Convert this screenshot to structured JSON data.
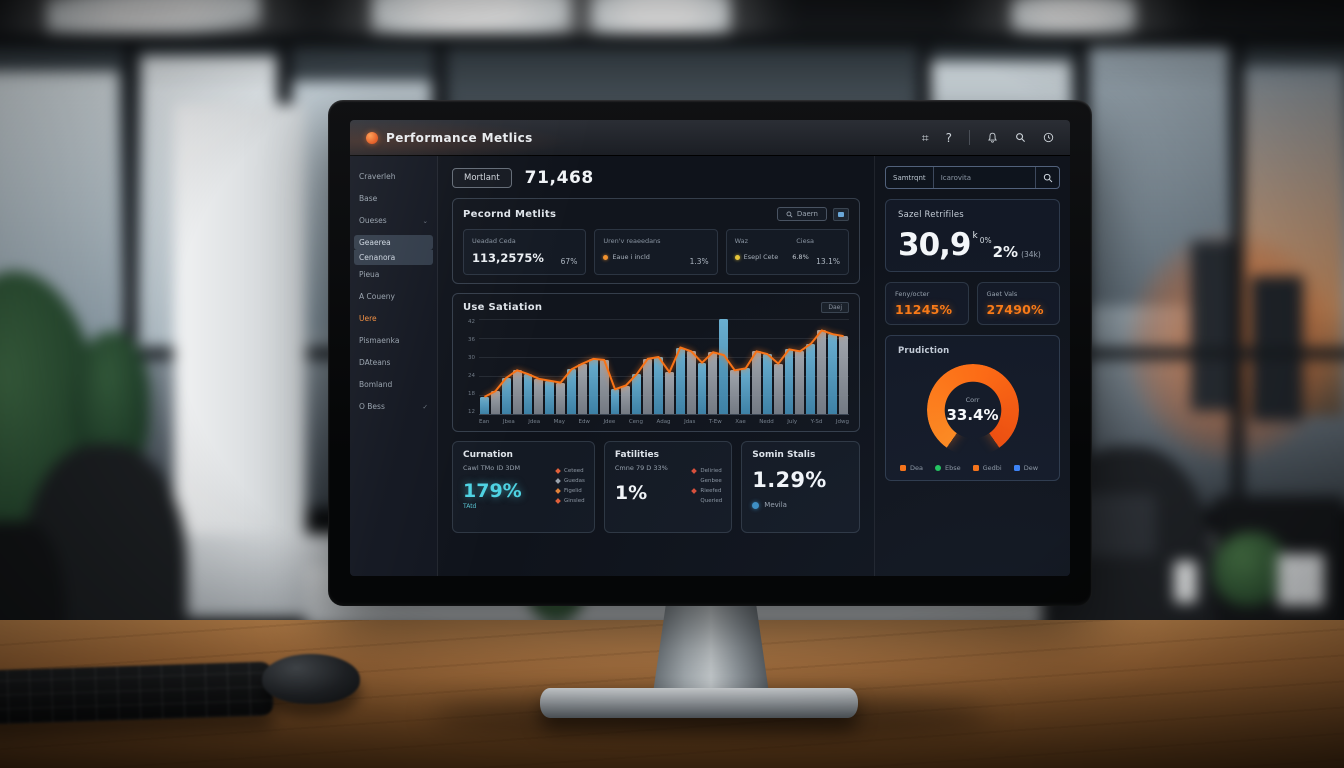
{
  "chart_data": {
    "type": "bar",
    "title": "Use Satiation",
    "action_label": "Daej",
    "x_labels": [
      "Ean",
      "Jbea",
      "Jdea",
      "May",
      "Edw",
      "Jdee",
      "Ceng",
      "Adag",
      "Jdas",
      "T-Ew",
      "Xae",
      "Nedd",
      "July",
      "Y-Sd",
      "Jdwg"
    ],
    "y_labels": [
      "42",
      "36",
      "30",
      "24",
      "18",
      "12"
    ],
    "bar_values": [
      18,
      24,
      38,
      46,
      42,
      37,
      35,
      33,
      47,
      53,
      58,
      57,
      26,
      30,
      42,
      58,
      60,
      44,
      70,
      66,
      54,
      65,
      100,
      46,
      48,
      66,
      63,
      53,
      68,
      66,
      74,
      88,
      84,
      82
    ],
    "line_values": [
      18,
      24,
      38,
      46,
      42,
      37,
      35,
      33,
      47,
      53,
      58,
      57,
      26,
      30,
      42,
      58,
      60,
      44,
      70,
      66,
      54,
      65,
      62,
      46,
      48,
      66,
      63,
      53,
      68,
      66,
      74,
      88,
      84,
      82
    ],
    "ylim": [
      0,
      100
    ],
    "grid": true,
    "bar_colors": {
      "primary": "#6fb7da",
      "secondary": "#a8adb4"
    },
    "line_color": "#f97316"
  },
  "screen": {
    "header": {
      "title": "Performance Metlics",
      "icons": [
        "grid-icon",
        "help-icon",
        "bell-icon",
        "search-icon",
        "clock-icon"
      ]
    },
    "sidebar": {
      "items": [
        {
          "label": "Craverleh"
        },
        {
          "label": "Base"
        },
        {
          "label": "Oueses",
          "suffix": "⌄"
        },
        {
          "label": "Geaerea",
          "state": "active"
        },
        {
          "label": "Cenanora",
          "state": "active"
        },
        {
          "label": "Pieua"
        },
        {
          "label": "A Coueny"
        },
        {
          "label": "Uere",
          "state": "accent"
        },
        {
          "label": "Pismaenka"
        },
        {
          "label": "DAteans"
        },
        {
          "label": "Bomland"
        },
        {
          "label": "O Bess",
          "suffix": "✓"
        }
      ]
    },
    "kpi": {
      "button_label": "Mortlant",
      "value": "71,468"
    },
    "percent_section": {
      "title": "Pecornd Metlits",
      "search_label": "Daern",
      "cards": [
        {
          "label": "Ueadad Ceda",
          "value": "113,2575%",
          "aside": "67%"
        },
        {
          "label": "Uren'v reaeedans",
          "item": "Eaue i incld",
          "aside": "1.3%"
        },
        {
          "label": "Waz",
          "label2": "Ciesa",
          "item": "Esepl Cete",
          "value2": "6.8%",
          "aside": "13.1%"
        }
      ]
    },
    "bottom_cards": {
      "curation": {
        "title": "Curnation",
        "subtitle": "Cawl TMo ID 3DM",
        "value": "179%",
        "value_caption": "TAtd",
        "legend": [
          {
            "label": "Ceteed",
            "color": "#e0603a"
          },
          {
            "label": "Guedas",
            "color": "#9aa3ad"
          },
          {
            "label": "Figelid",
            "color": "#e0823a"
          },
          {
            "label": "Ginsled",
            "color": "#e0603a"
          }
        ]
      },
      "fatilities": {
        "title": "Fatilities",
        "subtitle": "Cmne 79 D 33%",
        "value": "1%",
        "legend": [
          {
            "label": "Deliried",
            "color": "#d94f3a"
          },
          {
            "label": "Genbee",
            "color": "transparent"
          },
          {
            "label": "Rieefed",
            "color": "#d94f3a"
          },
          {
            "label": "Queried",
            "color": "transparent"
          }
        ]
      },
      "status": {
        "title": "Somin Stalis",
        "value": "1.29%",
        "legend_label": "Mevila"
      }
    },
    "right_panel": {
      "search": {
        "segment": "Samtrqnt",
        "placeholder": "Icarovita"
      },
      "seal": {
        "title": "Sazel Retrifiles",
        "value_main": "30,9",
        "sup_a": "k",
        "sup_b": "0%",
        "value_mid": "2%",
        "note": "(34k)"
      },
      "stat_cards": [
        {
          "label": "Feny/octer",
          "value": "11245%"
        },
        {
          "label": "Gaet Vals",
          "value": "27490%"
        }
      ],
      "prediction": {
        "title": "Prudiction",
        "center_label": "Corr",
        "value": "33.4%",
        "legend": [
          {
            "label": "Dea",
            "color": "#f97316"
          },
          {
            "label": "Ebse",
            "color": "#22c55e",
            "shape": "dot"
          },
          {
            "label": "Gedbi",
            "color": "#f97316"
          },
          {
            "label": "Dew",
            "color": "#3b82f6"
          }
        ]
      }
    }
  },
  "colors": {
    "accent_orange": "#f97316",
    "bar_blue": "#6fb7da",
    "bar_gray": "#a8adb4",
    "teal": "#4fd3e3",
    "legend_green": "#22c55e",
    "legend_blue": "#3b82f6"
  }
}
